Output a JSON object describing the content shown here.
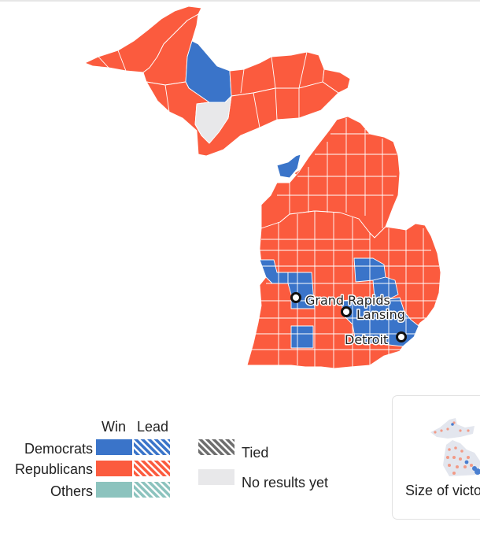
{
  "colors": {
    "democrats": "#3a74c9",
    "republicans": "#fb5b3e",
    "others": "#8cc3be",
    "tied": "#7a7a7a",
    "no_results": "#e8e8ea",
    "border": "#ffffff"
  },
  "cities": [
    {
      "name": "Grand Rapids"
    },
    {
      "name": "Lansing"
    },
    {
      "name": "Detroit"
    }
  ],
  "legend": {
    "col_win": "Win",
    "col_lead": "Lead",
    "rows": [
      {
        "label": "Democrats",
        "key": "democrats"
      },
      {
        "label": "Republicans",
        "key": "republicans"
      },
      {
        "label": "Others",
        "key": "others"
      }
    ],
    "tied_label": "Tied",
    "no_results_label": "No results yet"
  },
  "card": {
    "title": "Size of victory"
  }
}
